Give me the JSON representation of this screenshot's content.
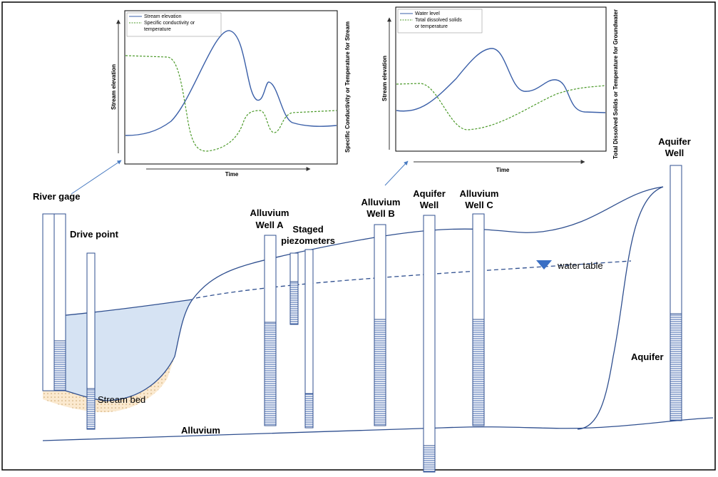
{
  "charts": [
    {
      "legend": [
        "Stream elevation",
        [
          "Specific conductivity or",
          "temperature"
        ]
      ],
      "y_label": "Stream elevation",
      "y2_label": "Specific Conductivity or Temperature for Stream",
      "x_label": "Time"
    },
    {
      "legend": [
        "Water level",
        [
          "Total dissolved solids",
          "or temperature"
        ]
      ],
      "y_label": "Stream elevation",
      "y2_label": "Total Dissolved Solids or Temperature for Groundwater",
      "x_label": "Time"
    }
  ],
  "labels": {
    "river_gage": "River gage",
    "drive_point": "Drive point",
    "alluvium_well_a": [
      "Alluvium",
      "Well A"
    ],
    "staged_piezometers": [
      "Staged",
      "piezometers"
    ],
    "alluvium_well_b": [
      "Alluvium",
      "Well B"
    ],
    "aquifer_well": [
      "Aquifer",
      "Well"
    ],
    "alluvium_well_c": [
      "Alluvium",
      "Well C"
    ],
    "aquifer_well_right": [
      "Aquifer",
      "Well"
    ],
    "water_table": "water table",
    "stream_bed": "Stream bed",
    "alluvium": "Alluvium",
    "aquifer": "Aquifer"
  }
}
